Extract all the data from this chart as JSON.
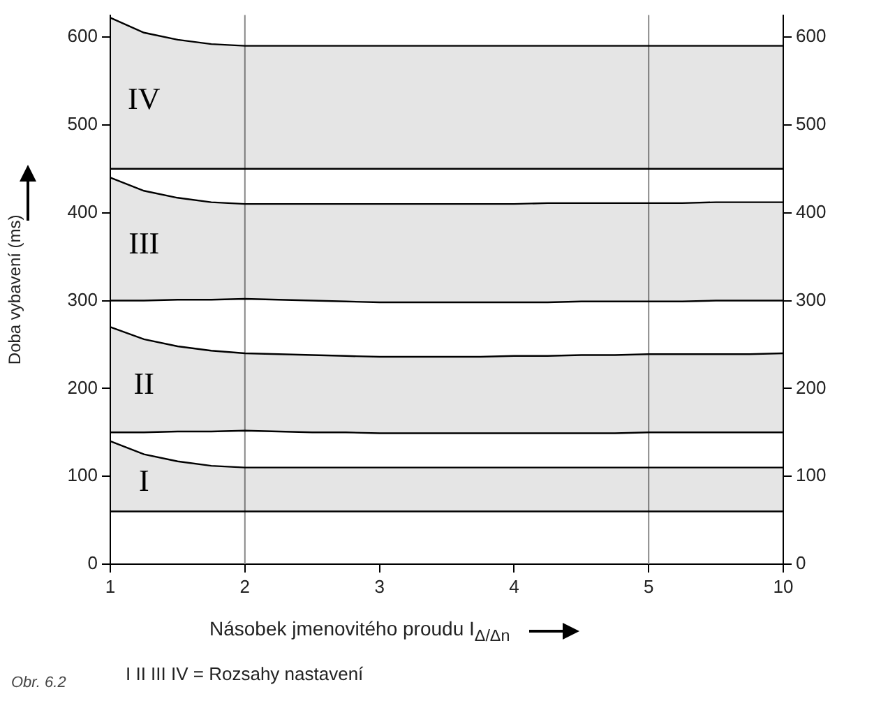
{
  "chart_data": {
    "type": "area",
    "xlabel": "Násobek jmenovitého proudu I$_{Δ/Δn}$",
    "ylabel": "Doba vybavení (ms)",
    "categories": [
      "1",
      null,
      null,
      null,
      "2",
      null,
      null,
      null,
      "3",
      null,
      null,
      null,
      "4",
      null,
      null,
      null,
      "5",
      null,
      null,
      null,
      "10"
    ],
    "series": [
      {
        "type": "line",
        "color": "#000000",
        "values": [
          60,
          60,
          60,
          60,
          60,
          60,
          60,
          60,
          60,
          60,
          60,
          60,
          60,
          60,
          60,
          60,
          60,
          60,
          60,
          60,
          60
        ]
      },
      {
        "color": "#000000",
        "values": [
          140,
          125,
          117,
          112,
          110,
          110,
          110,
          110,
          110,
          110,
          110,
          110,
          110,
          110,
          110,
          110,
          110,
          110,
          110,
          110,
          110
        ]
      },
      {
        "type": "line",
        "color": "#000000",
        "values": [
          150,
          150,
          151,
          151,
          152,
          151,
          150,
          150,
          149,
          149,
          149,
          149,
          149,
          149,
          149,
          149,
          150,
          150,
          150,
          150,
          150
        ]
      },
      {
        "color": "#000000",
        "values": [
          270,
          256,
          248,
          243,
          240,
          239,
          238,
          237,
          236,
          236,
          236,
          236,
          237,
          237,
          238,
          238,
          239,
          239,
          239,
          239,
          240
        ]
      },
      {
        "type": "line",
        "color": "#000000",
        "values": [
          300,
          300,
          301,
          301,
          302,
          301,
          300,
          299,
          298,
          298,
          298,
          298,
          298,
          298,
          299,
          299,
          299,
          299,
          300,
          300,
          300
        ]
      },
      {
        "color": "#000000",
        "values": [
          440,
          425,
          417,
          412,
          410,
          410,
          410,
          410,
          410,
          410,
          410,
          410,
          410,
          411,
          411,
          411,
          411,
          411,
          412,
          412,
          412
        ]
      },
      {
        "type": "line",
        "color": "#000000",
        "values": [
          450,
          450,
          450,
          450,
          450,
          450,
          450,
          450,
          450,
          450,
          450,
          450,
          450,
          450,
          450,
          450,
          450,
          450,
          450,
          450,
          450
        ]
      },
      {
        "color": "#000000",
        "values": [
          622,
          605,
          597,
          592,
          590,
          590,
          590,
          590,
          590,
          590,
          590,
          590,
          590,
          590,
          590,
          590,
          590,
          590,
          590,
          590,
          590
        ]
      }
    ],
    "ylim": [
      0,
      625
    ],
    "yticks": [
      0,
      100,
      200,
      300,
      400,
      500,
      600
    ],
    "y2lim": [
      0,
      625
    ],
    "y2ticks": [
      0,
      100,
      200,
      300,
      400,
      500,
      600
    ],
    "ref_lines": [
      {
        "axis": "x",
        "value": "2"
      },
      {
        "axis": "x",
        "value": "5"
      }
    ],
    "annotations": [
      "I",
      "II",
      "III",
      "IV",
      "I II III IV = Rozsahy nastavení",
      "Obr. 6.2"
    ]
  }
}
